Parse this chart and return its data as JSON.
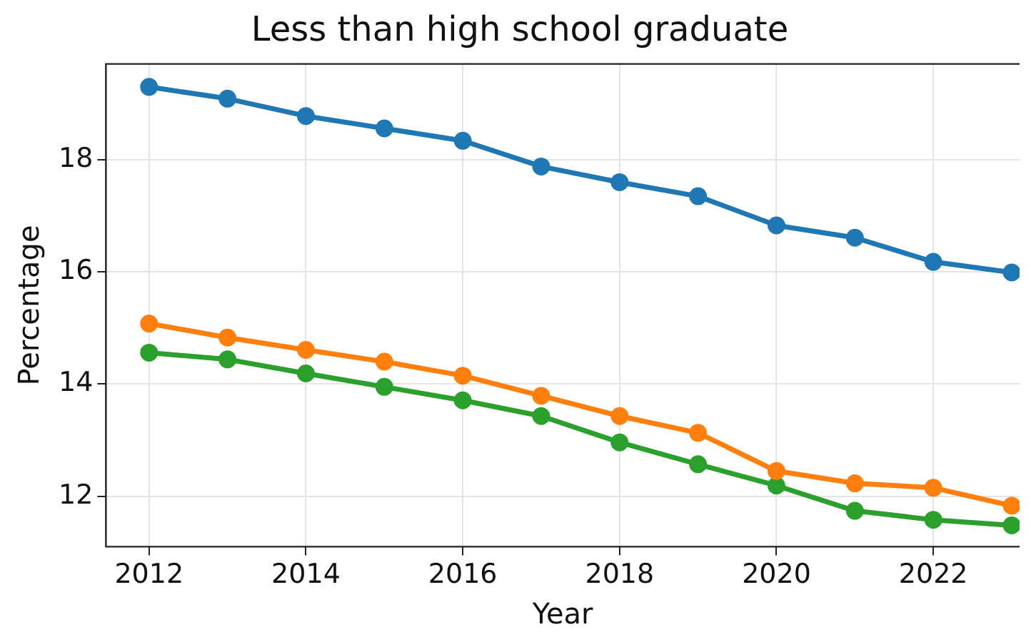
{
  "chart_data": {
    "type": "line",
    "title": "Less than high school graduate",
    "xlabel": "Year",
    "ylabel": "Percentage",
    "x": [
      2012,
      2013,
      2014,
      2015,
      2016,
      2017,
      2018,
      2019,
      2020,
      2021,
      2022,
      2023
    ],
    "series": [
      {
        "color": "#1f77b4",
        "values": [
          19.3,
          19.09,
          18.78,
          18.56,
          18.34,
          17.88,
          17.6,
          17.35,
          16.83,
          16.61,
          16.18,
          15.99
        ]
      },
      {
        "color": "#ff7f0e",
        "values": [
          15.08,
          14.83,
          14.61,
          14.4,
          14.15,
          13.79,
          13.43,
          13.13,
          12.45,
          12.23,
          12.15,
          11.83
        ]
      },
      {
        "color": "#2ca02c",
        "values": [
          14.56,
          14.44,
          14.19,
          13.95,
          13.71,
          13.43,
          12.96,
          12.57,
          12.19,
          11.74,
          11.58,
          11.48
        ]
      }
    ],
    "xlim": [
      2011.45,
      2023.1
    ],
    "ylim": [
      11.1,
      19.71
    ],
    "xticks": [
      2012,
      2014,
      2016,
      2018,
      2020,
      2022
    ],
    "yticks": [
      12,
      14,
      16,
      18
    ],
    "grid": true,
    "legend": false,
    "marker": "circle",
    "line_style": "solid"
  }
}
